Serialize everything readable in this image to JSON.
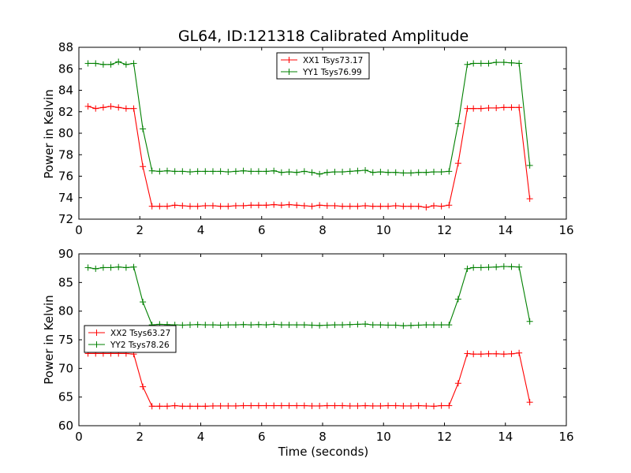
{
  "figure": {
    "title": "GL64, ID:121318 Calibrated Amplitude",
    "xlabel": "Time (seconds)"
  },
  "colors": {
    "red": "#ff0000",
    "green": "#008000",
    "axis": "#000000",
    "background": "#ffffff"
  },
  "chart_data": [
    {
      "type": "line",
      "title": "GL64, ID:121318 Calibrated Amplitude",
      "xlabel": "",
      "ylabel": "Power in Kelvin",
      "xlim": [
        0,
        16
      ],
      "ylim": [
        72,
        88
      ],
      "xticks": [
        0,
        2,
        4,
        6,
        8,
        10,
        12,
        14,
        16
      ],
      "yticks": [
        72,
        74,
        76,
        78,
        80,
        82,
        84,
        86,
        88
      ],
      "legend": "upper center",
      "grid": false,
      "x": [
        0.3,
        0.55,
        0.8,
        1.05,
        1.3,
        1.55,
        1.8,
        2.1,
        2.4,
        2.65,
        2.9,
        3.15,
        3.4,
        3.65,
        3.9,
        4.15,
        4.4,
        4.65,
        4.9,
        5.15,
        5.4,
        5.65,
        5.9,
        6.15,
        6.4,
        6.65,
        6.9,
        7.15,
        7.4,
        7.65,
        7.9,
        8.15,
        8.4,
        8.65,
        8.9,
        9.15,
        9.4,
        9.65,
        9.9,
        10.15,
        10.4,
        10.65,
        10.9,
        11.15,
        11.4,
        11.65,
        11.9,
        12.15,
        12.45,
        12.75,
        12.95,
        13.2,
        13.45,
        13.7,
        13.95,
        14.2,
        14.45,
        14.8
      ],
      "series": [
        {
          "name": "XX1 Tsys73.17",
          "color": "#ff0000",
          "values": [
            82.5,
            82.3,
            82.4,
            82.5,
            82.4,
            82.3,
            82.3,
            76.9,
            73.2,
            73.2,
            73.2,
            73.3,
            73.25,
            73.2,
            73.2,
            73.25,
            73.25,
            73.2,
            73.2,
            73.25,
            73.25,
            73.3,
            73.3,
            73.3,
            73.35,
            73.3,
            73.35,
            73.3,
            73.25,
            73.2,
            73.3,
            73.25,
            73.25,
            73.2,
            73.2,
            73.2,
            73.25,
            73.2,
            73.2,
            73.2,
            73.25,
            73.2,
            73.2,
            73.2,
            73.1,
            73.25,
            73.2,
            73.3,
            77.2,
            82.3,
            82.3,
            82.3,
            82.35,
            82.35,
            82.4,
            82.4,
            82.4,
            73.9
          ]
        },
        {
          "name": "YY1 Tsys76.99",
          "color": "#008000",
          "values": [
            86.5,
            86.5,
            86.4,
            86.4,
            86.65,
            86.4,
            86.5,
            80.4,
            76.5,
            76.45,
            76.5,
            76.45,
            76.45,
            76.4,
            76.45,
            76.45,
            76.45,
            76.45,
            76.4,
            76.45,
            76.5,
            76.45,
            76.45,
            76.45,
            76.5,
            76.35,
            76.4,
            76.35,
            76.45,
            76.35,
            76.2,
            76.35,
            76.4,
            76.4,
            76.45,
            76.5,
            76.55,
            76.35,
            76.4,
            76.35,
            76.35,
            76.3,
            76.3,
            76.35,
            76.35,
            76.4,
            76.4,
            76.45,
            80.9,
            86.4,
            86.5,
            86.5,
            86.5,
            86.6,
            86.6,
            86.55,
            86.5,
            77.0
          ]
        }
      ]
    },
    {
      "type": "line",
      "title": "",
      "xlabel": "Time (seconds)",
      "ylabel": "Power in Kelvin",
      "xlim": [
        0,
        16
      ],
      "ylim": [
        60,
        90
      ],
      "xticks": [
        0,
        2,
        4,
        6,
        8,
        10,
        12,
        14,
        16
      ],
      "yticks": [
        60,
        65,
        70,
        75,
        80,
        85,
        90
      ],
      "legend": "center left",
      "grid": false,
      "x": [
        0.3,
        0.55,
        0.8,
        1.05,
        1.3,
        1.55,
        1.8,
        2.1,
        2.4,
        2.65,
        2.9,
        3.15,
        3.4,
        3.65,
        3.9,
        4.15,
        4.4,
        4.65,
        4.9,
        5.15,
        5.4,
        5.65,
        5.9,
        6.15,
        6.4,
        6.65,
        6.9,
        7.15,
        7.4,
        7.65,
        7.9,
        8.15,
        8.4,
        8.65,
        8.9,
        9.15,
        9.4,
        9.65,
        9.9,
        10.15,
        10.4,
        10.65,
        10.9,
        11.15,
        11.4,
        11.65,
        11.9,
        12.15,
        12.45,
        12.75,
        12.95,
        13.2,
        13.45,
        13.7,
        13.95,
        14.2,
        14.45,
        14.8
      ],
      "series": [
        {
          "name": "XX2 Tsys63.27",
          "color": "#ff0000",
          "values": [
            72.6,
            72.6,
            72.6,
            72.6,
            72.6,
            72.6,
            72.5,
            66.8,
            63.4,
            63.4,
            63.4,
            63.5,
            63.4,
            63.4,
            63.4,
            63.4,
            63.45,
            63.45,
            63.45,
            63.45,
            63.5,
            63.5,
            63.5,
            63.5,
            63.5,
            63.5,
            63.5,
            63.5,
            63.5,
            63.45,
            63.45,
            63.5,
            63.5,
            63.5,
            63.45,
            63.45,
            63.5,
            63.45,
            63.45,
            63.5,
            63.5,
            63.45,
            63.45,
            63.5,
            63.45,
            63.4,
            63.5,
            63.5,
            67.4,
            72.6,
            72.5,
            72.5,
            72.55,
            72.55,
            72.5,
            72.55,
            72.7,
            64.1
          ]
        },
        {
          "name": "YY2 Tsys78.26",
          "color": "#008000",
          "values": [
            87.6,
            87.4,
            87.6,
            87.6,
            87.7,
            87.6,
            87.7,
            81.6,
            77.6,
            77.7,
            77.65,
            77.6,
            77.55,
            77.6,
            77.65,
            77.6,
            77.6,
            77.55,
            77.6,
            77.6,
            77.65,
            77.6,
            77.65,
            77.6,
            77.7,
            77.6,
            77.6,
            77.6,
            77.6,
            77.55,
            77.5,
            77.55,
            77.6,
            77.6,
            77.65,
            77.7,
            77.75,
            77.6,
            77.6,
            77.55,
            77.55,
            77.45,
            77.5,
            77.55,
            77.6,
            77.6,
            77.6,
            77.6,
            82.1,
            87.4,
            87.6,
            87.6,
            87.65,
            87.7,
            87.8,
            87.75,
            87.7,
            78.2
          ]
        }
      ]
    }
  ]
}
